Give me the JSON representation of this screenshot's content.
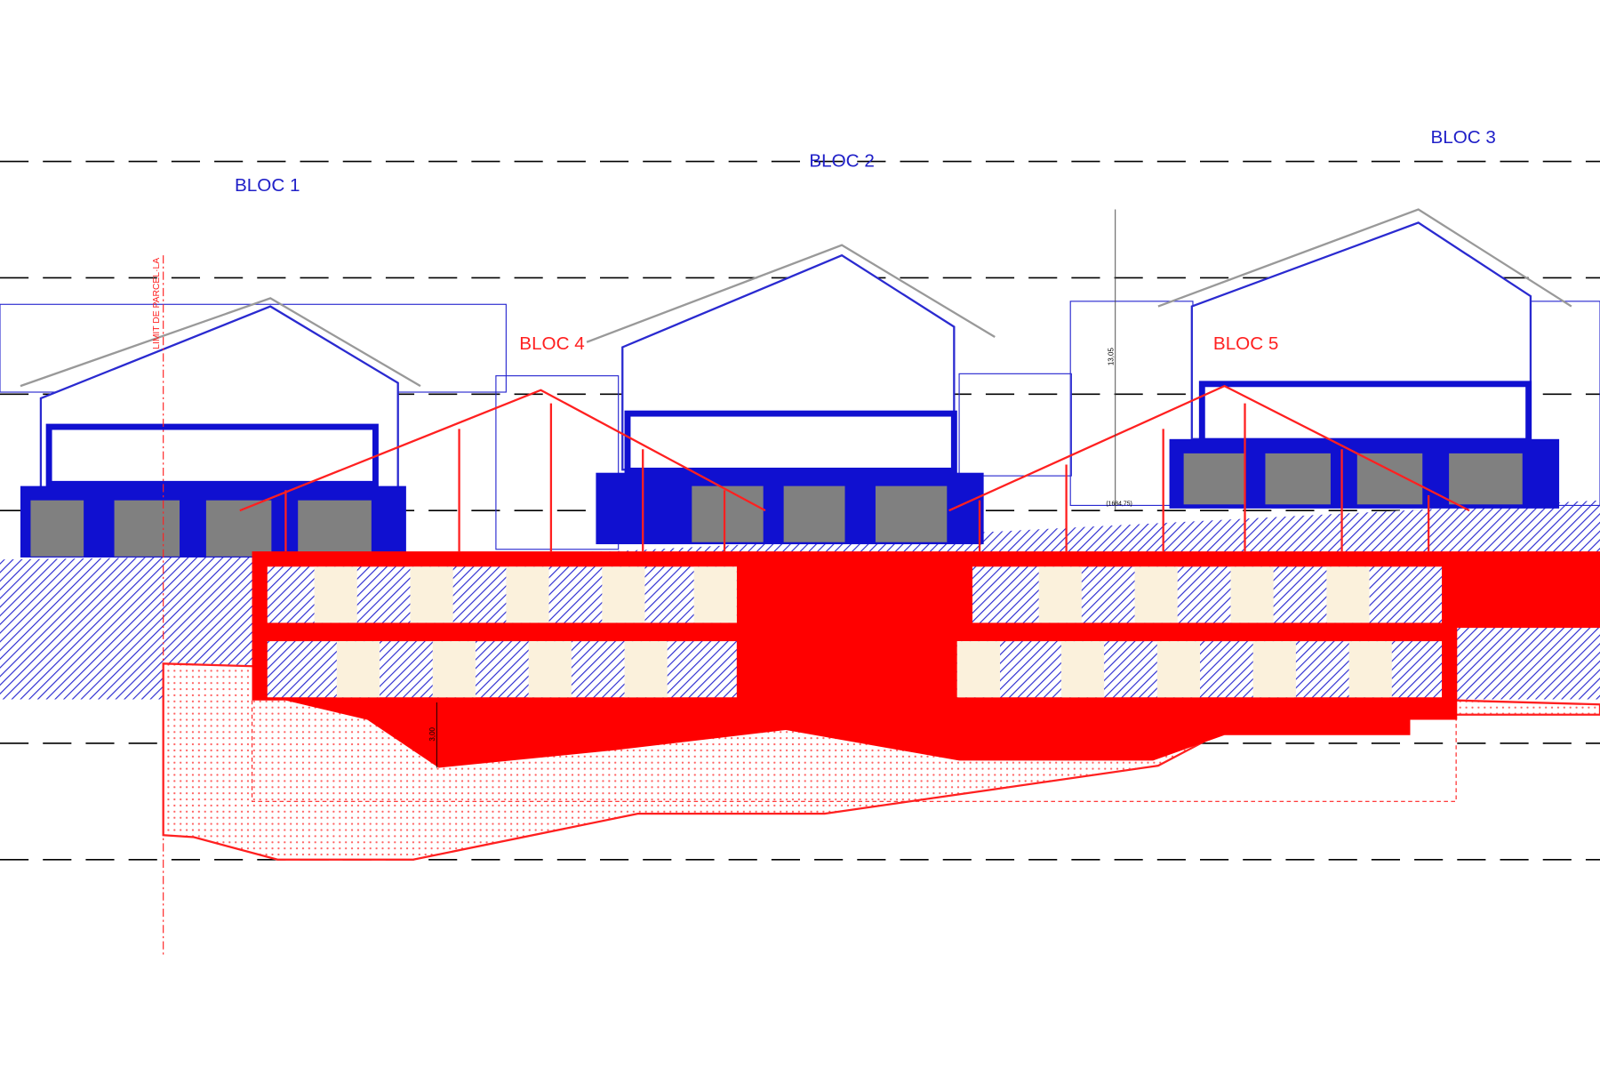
{
  "blocks": [
    {
      "label": "BLOC 1"
    },
    {
      "label": "BLOC 2"
    },
    {
      "label": "BLOC 3"
    },
    {
      "label": "BLOC 4"
    },
    {
      "label": "BLOC 5"
    }
  ],
  "annotations": {
    "parcel_limit": "LIMIT DE PARCEL·LA",
    "height": "13,05",
    "level": "(1684,75)",
    "depth": "3,00"
  }
}
